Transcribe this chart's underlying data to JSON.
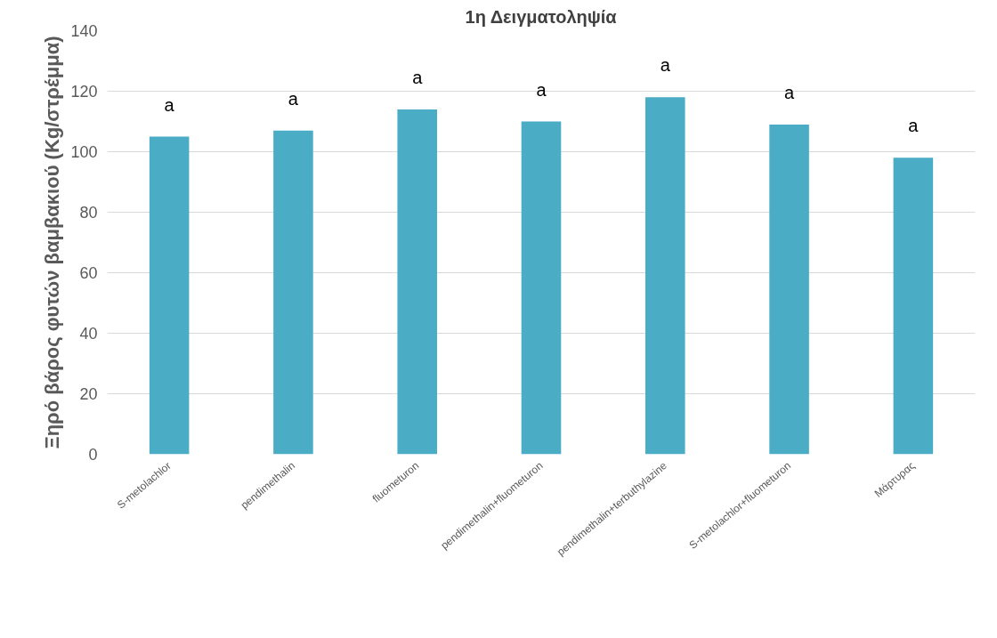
{
  "chart_data": {
    "type": "bar",
    "title": "1η Δειγματοληψία",
    "ylabel": "Ξηρό βάρος φυτών βαμβακιού (Kg/στρέμμα)",
    "categories": [
      "S-metolachlor",
      "pendimethalin",
      "fluometuron",
      "pendimethalin+fluometuron",
      "pendimethalin+terbuthylazine",
      "S-metolachlor+fluometuron",
      "Μάρτυρας"
    ],
    "values": [
      105,
      107,
      114,
      110,
      118,
      109,
      98
    ],
    "color": "#4bacc6",
    "ylim": [
      0,
      140
    ],
    "yticks": [
      0,
      20,
      40,
      60,
      80,
      100,
      120,
      140
    ],
    "grid": "y",
    "annotations": [
      "a",
      "a",
      "a",
      "a",
      "a",
      "a",
      "a"
    ]
  }
}
